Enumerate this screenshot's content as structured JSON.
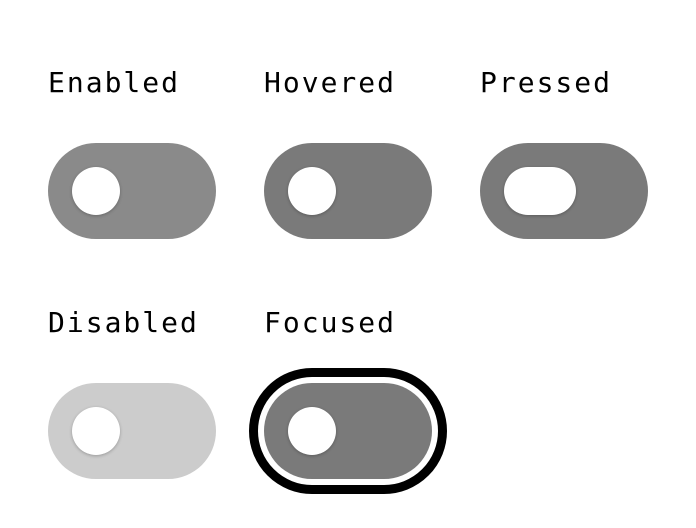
{
  "states": {
    "enabled": {
      "label": "Enabled",
      "track_color": "#8a8a8a"
    },
    "hovered": {
      "label": "Hovered",
      "track_color": "#7a7a7a"
    },
    "pressed": {
      "label": "Pressed",
      "track_color": "#7a7a7a"
    },
    "disabled": {
      "label": "Disabled",
      "track_color": "#cccccc"
    },
    "focused": {
      "label": "Focused",
      "track_color": "#7a7a7a",
      "focus_ring_color": "#000000"
    }
  },
  "colors": {
    "handle": "#ffffff",
    "background": "#ffffff"
  }
}
